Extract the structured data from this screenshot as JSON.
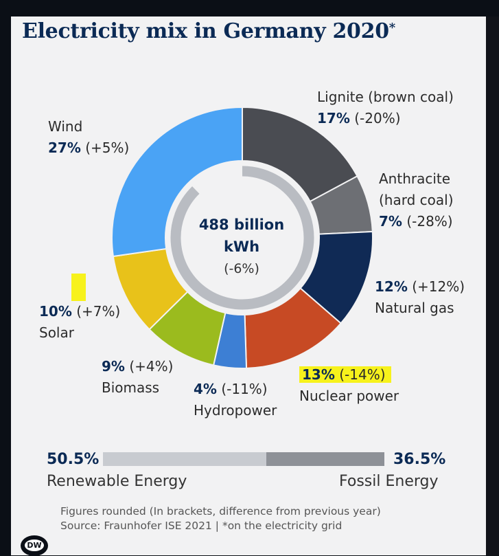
{
  "title": "Electricity mix in Germany 2020",
  "title_mark": "*",
  "center": {
    "value": "488 billion",
    "unit": "kWh",
    "change": "(-6%)"
  },
  "chart_data": {
    "type": "pie",
    "donut": true,
    "total": "488 billion kWh",
    "slices": [
      {
        "label": "Lignite (brown coal)",
        "pct": 17,
        "pct_text": "17%",
        "change_text": "(-20%)",
        "color": "#4a4c52"
      },
      {
        "label": "Anthracite (hard coal)",
        "pct": 7,
        "pct_text": "7%",
        "change_text": "(-28%)",
        "color": "#6d6f74"
      },
      {
        "label": "Natural gas",
        "pct": 12,
        "pct_text": "12%",
        "change_text": "(+12%)",
        "color": "#102a55"
      },
      {
        "label": "Nuclear power",
        "pct": 13,
        "pct_text": "13%",
        "change_text": "(-14%)",
        "color": "#c74a24"
      },
      {
        "label": "Hydropower",
        "pct": 4,
        "pct_text": "4%",
        "change_text": "(-11%)",
        "color": "#3d7fd4"
      },
      {
        "label": "Biomass",
        "pct": 9,
        "pct_text": "9%",
        "change_text": "(+4%)",
        "color": "#9bbb1e"
      },
      {
        "label": "Solar",
        "pct": 10,
        "pct_text": "10%",
        "change_text": "(+7%)",
        "color": "#e8c21a"
      },
      {
        "label": "Wind",
        "pct": 27,
        "pct_text": "27%",
        "change_text": "(+5%)",
        "color": "#4aa3f5"
      }
    ],
    "inner_ring_fraction": 0.877,
    "inner_ring_color": "#b9bcc2",
    "summary_bar": {
      "renewable": {
        "label": "Renewable Energy",
        "value": 50.5,
        "value_text": "50.5%",
        "color": "#c8cbd0"
      },
      "fossil": {
        "label": "Fossil Energy",
        "value": 36.5,
        "value_text": "36.5%",
        "color": "#8e9197"
      }
    }
  },
  "footnote_1": "Figures rounded (In brackets, difference from previous year)",
  "footnote_2": "Source: Fraunhofer ISE 2021 | *on the electricity grid",
  "logo_text": "DW"
}
